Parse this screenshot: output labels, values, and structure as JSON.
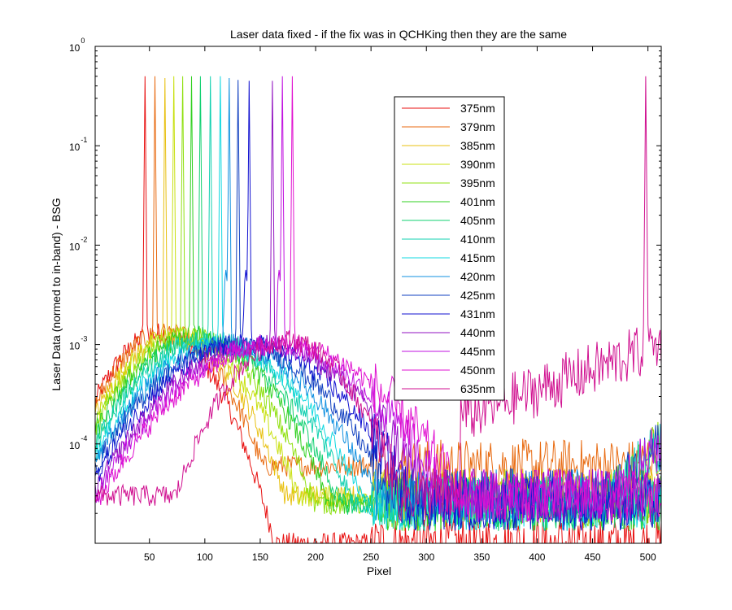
{
  "chart_data": {
    "type": "line",
    "title": "Laser data fixed - if the fix was in QCHKing then they are the same",
    "xlabel": "Pixel",
    "ylabel": "Laser Data (normed to in-band) - BSG",
    "xlim": [
      1,
      512
    ],
    "ylim": [
      1e-05,
      1
    ],
    "yscale": "log",
    "grid": false,
    "legend_position": "top-center",
    "x_ticks": [
      50,
      100,
      150,
      200,
      250,
      300,
      350,
      400,
      450,
      500
    ],
    "x_tick_labels": [
      "50",
      "100",
      "150",
      "200",
      "250",
      "300",
      "350",
      "400",
      "450",
      "500"
    ],
    "y_ticks": [
      {
        "value": 0.0001,
        "base": "10",
        "exp": "-4"
      },
      {
        "value": 0.001,
        "base": "10",
        "exp": "-3"
      },
      {
        "value": 0.01,
        "base": "10",
        "exp": "-2"
      },
      {
        "value": 0.1,
        "base": "10",
        "exp": "-1"
      },
      {
        "value": 1,
        "base": "10",
        "exp": "0"
      }
    ],
    "series": [
      {
        "name": "375nm",
        "color": "#e81010",
        "peak_x": 46,
        "peak_y": 0.5,
        "halo_x": 60,
        "halo_y": 0.0013,
        "tail_y": 1e-05
      },
      {
        "name": "379nm",
        "color": "#e86a10",
        "peak_x": 55,
        "peak_y": 0.5,
        "halo_x": 65,
        "halo_y": 0.0013,
        "tail_y": 6e-05
      },
      {
        "name": "385nm",
        "color": "#e8c010",
        "peak_x": 64,
        "peak_y": 0.48,
        "halo_x": 72,
        "halo_y": 0.0012,
        "tail_y": 3e-05
      },
      {
        "name": "390nm",
        "color": "#c8e010",
        "peak_x": 72,
        "peak_y": 0.5,
        "halo_x": 78,
        "halo_y": 0.0012,
        "tail_y": 3e-05
      },
      {
        "name": "395nm",
        "color": "#90e010",
        "peak_x": 80,
        "peak_y": 0.5,
        "halo_x": 85,
        "halo_y": 0.0012,
        "tail_y": 2.5e-05
      },
      {
        "name": "401nm",
        "color": "#30d020",
        "peak_x": 88,
        "peak_y": 0.5,
        "halo_x": 92,
        "halo_y": 0.0012,
        "tail_y": 2.5e-05
      },
      {
        "name": "405nm",
        "color": "#10d070",
        "peak_x": 96,
        "peak_y": 0.5,
        "halo_x": 98,
        "halo_y": 0.0011,
        "tail_y": 2.5e-05
      },
      {
        "name": "410nm",
        "color": "#10d0b0",
        "peak_x": 105,
        "peak_y": 0.5,
        "halo_x": 105,
        "halo_y": 0.0011,
        "tail_y": 2.5e-05
      },
      {
        "name": "415nm",
        "color": "#10d8e0",
        "peak_x": 114,
        "peak_y": 0.5,
        "halo_x": 112,
        "halo_y": 0.001,
        "tail_y": 2.5e-05
      },
      {
        "name": "420nm",
        "color": "#1090e0",
        "peak_x": 122,
        "peak_y": 0.48,
        "halo_x": 120,
        "halo_y": 0.001,
        "tail_y": 3e-05
      },
      {
        "name": "425nm",
        "color": "#1040c0",
        "peak_x": 130,
        "peak_y": 0.46,
        "halo_x": 128,
        "halo_y": 0.001,
        "tail_y": 3e-05
      },
      {
        "name": "431nm",
        "color": "#1010d0",
        "peak_x": 140,
        "peak_y": 0.45,
        "halo_x": 138,
        "halo_y": 0.001,
        "tail_y": 2.5e-05
      },
      {
        "name": "440nm",
        "color": "#9010c0",
        "peak_x": 161,
        "peak_y": 0.45,
        "halo_x": 150,
        "halo_y": 0.001,
        "tail_y": 3e-05
      },
      {
        "name": "445nm",
        "color": "#c010e0",
        "peak_x": 170,
        "peak_y": 0.5,
        "halo_x": 158,
        "halo_y": 0.001,
        "tail_y": 3e-05
      },
      {
        "name": "450nm",
        "color": "#e010d0",
        "peak_x": 179,
        "peak_y": 0.5,
        "halo_x": 168,
        "halo_y": 0.001,
        "tail_y": 3e-05
      },
      {
        "name": "635nm",
        "color": "#d01090",
        "peak_x": 498,
        "peak_y": 0.5,
        "halo_x": 175,
        "halo_y": 0.0011,
        "tail_y": 3e-05
      }
    ]
  }
}
